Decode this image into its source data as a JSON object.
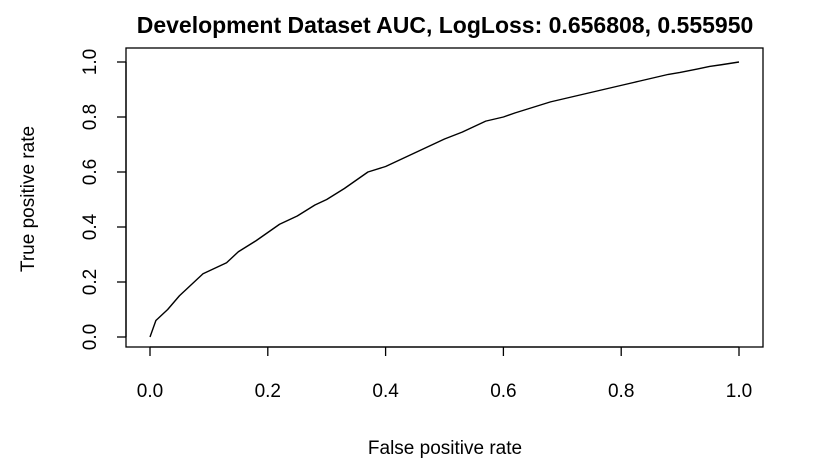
{
  "chart_data": {
    "type": "line",
    "title": "Development Dataset AUC, LogLoss: 0.656808, 0.555950",
    "xlabel": "False positive rate",
    "ylabel": "True positive rate",
    "xlim": [
      0,
      1
    ],
    "ylim": [
      0,
      1
    ],
    "xticks": [
      "0.0",
      "0.2",
      "0.4",
      "0.6",
      "0.8",
      "1.0"
    ],
    "yticks": [
      "0.0",
      "0.2",
      "0.4",
      "0.6",
      "0.8",
      "1.0"
    ],
    "grid": false,
    "series": [
      {
        "x": [
          0.0,
          0.005,
          0.01,
          0.02,
          0.03,
          0.05,
          0.07,
          0.09,
          0.1,
          0.12,
          0.13,
          0.15,
          0.18,
          0.2,
          0.22,
          0.25,
          0.28,
          0.3,
          0.33,
          0.35,
          0.37,
          0.4,
          0.42,
          0.45,
          0.48,
          0.5,
          0.53,
          0.55,
          0.57,
          0.6,
          0.62,
          0.65,
          0.68,
          0.7,
          0.72,
          0.75,
          0.78,
          0.8,
          0.83,
          0.85,
          0.88,
          0.9,
          0.93,
          0.95,
          0.97,
          1.0
        ],
        "y": [
          0.0,
          0.03,
          0.06,
          0.08,
          0.1,
          0.15,
          0.19,
          0.23,
          0.24,
          0.26,
          0.27,
          0.31,
          0.35,
          0.38,
          0.41,
          0.44,
          0.48,
          0.5,
          0.54,
          0.57,
          0.6,
          0.62,
          0.64,
          0.67,
          0.7,
          0.72,
          0.745,
          0.765,
          0.785,
          0.8,
          0.815,
          0.835,
          0.855,
          0.865,
          0.875,
          0.89,
          0.905,
          0.915,
          0.93,
          0.94,
          0.955,
          0.962,
          0.975,
          0.984,
          0.99,
          1.0
        ]
      }
    ]
  }
}
